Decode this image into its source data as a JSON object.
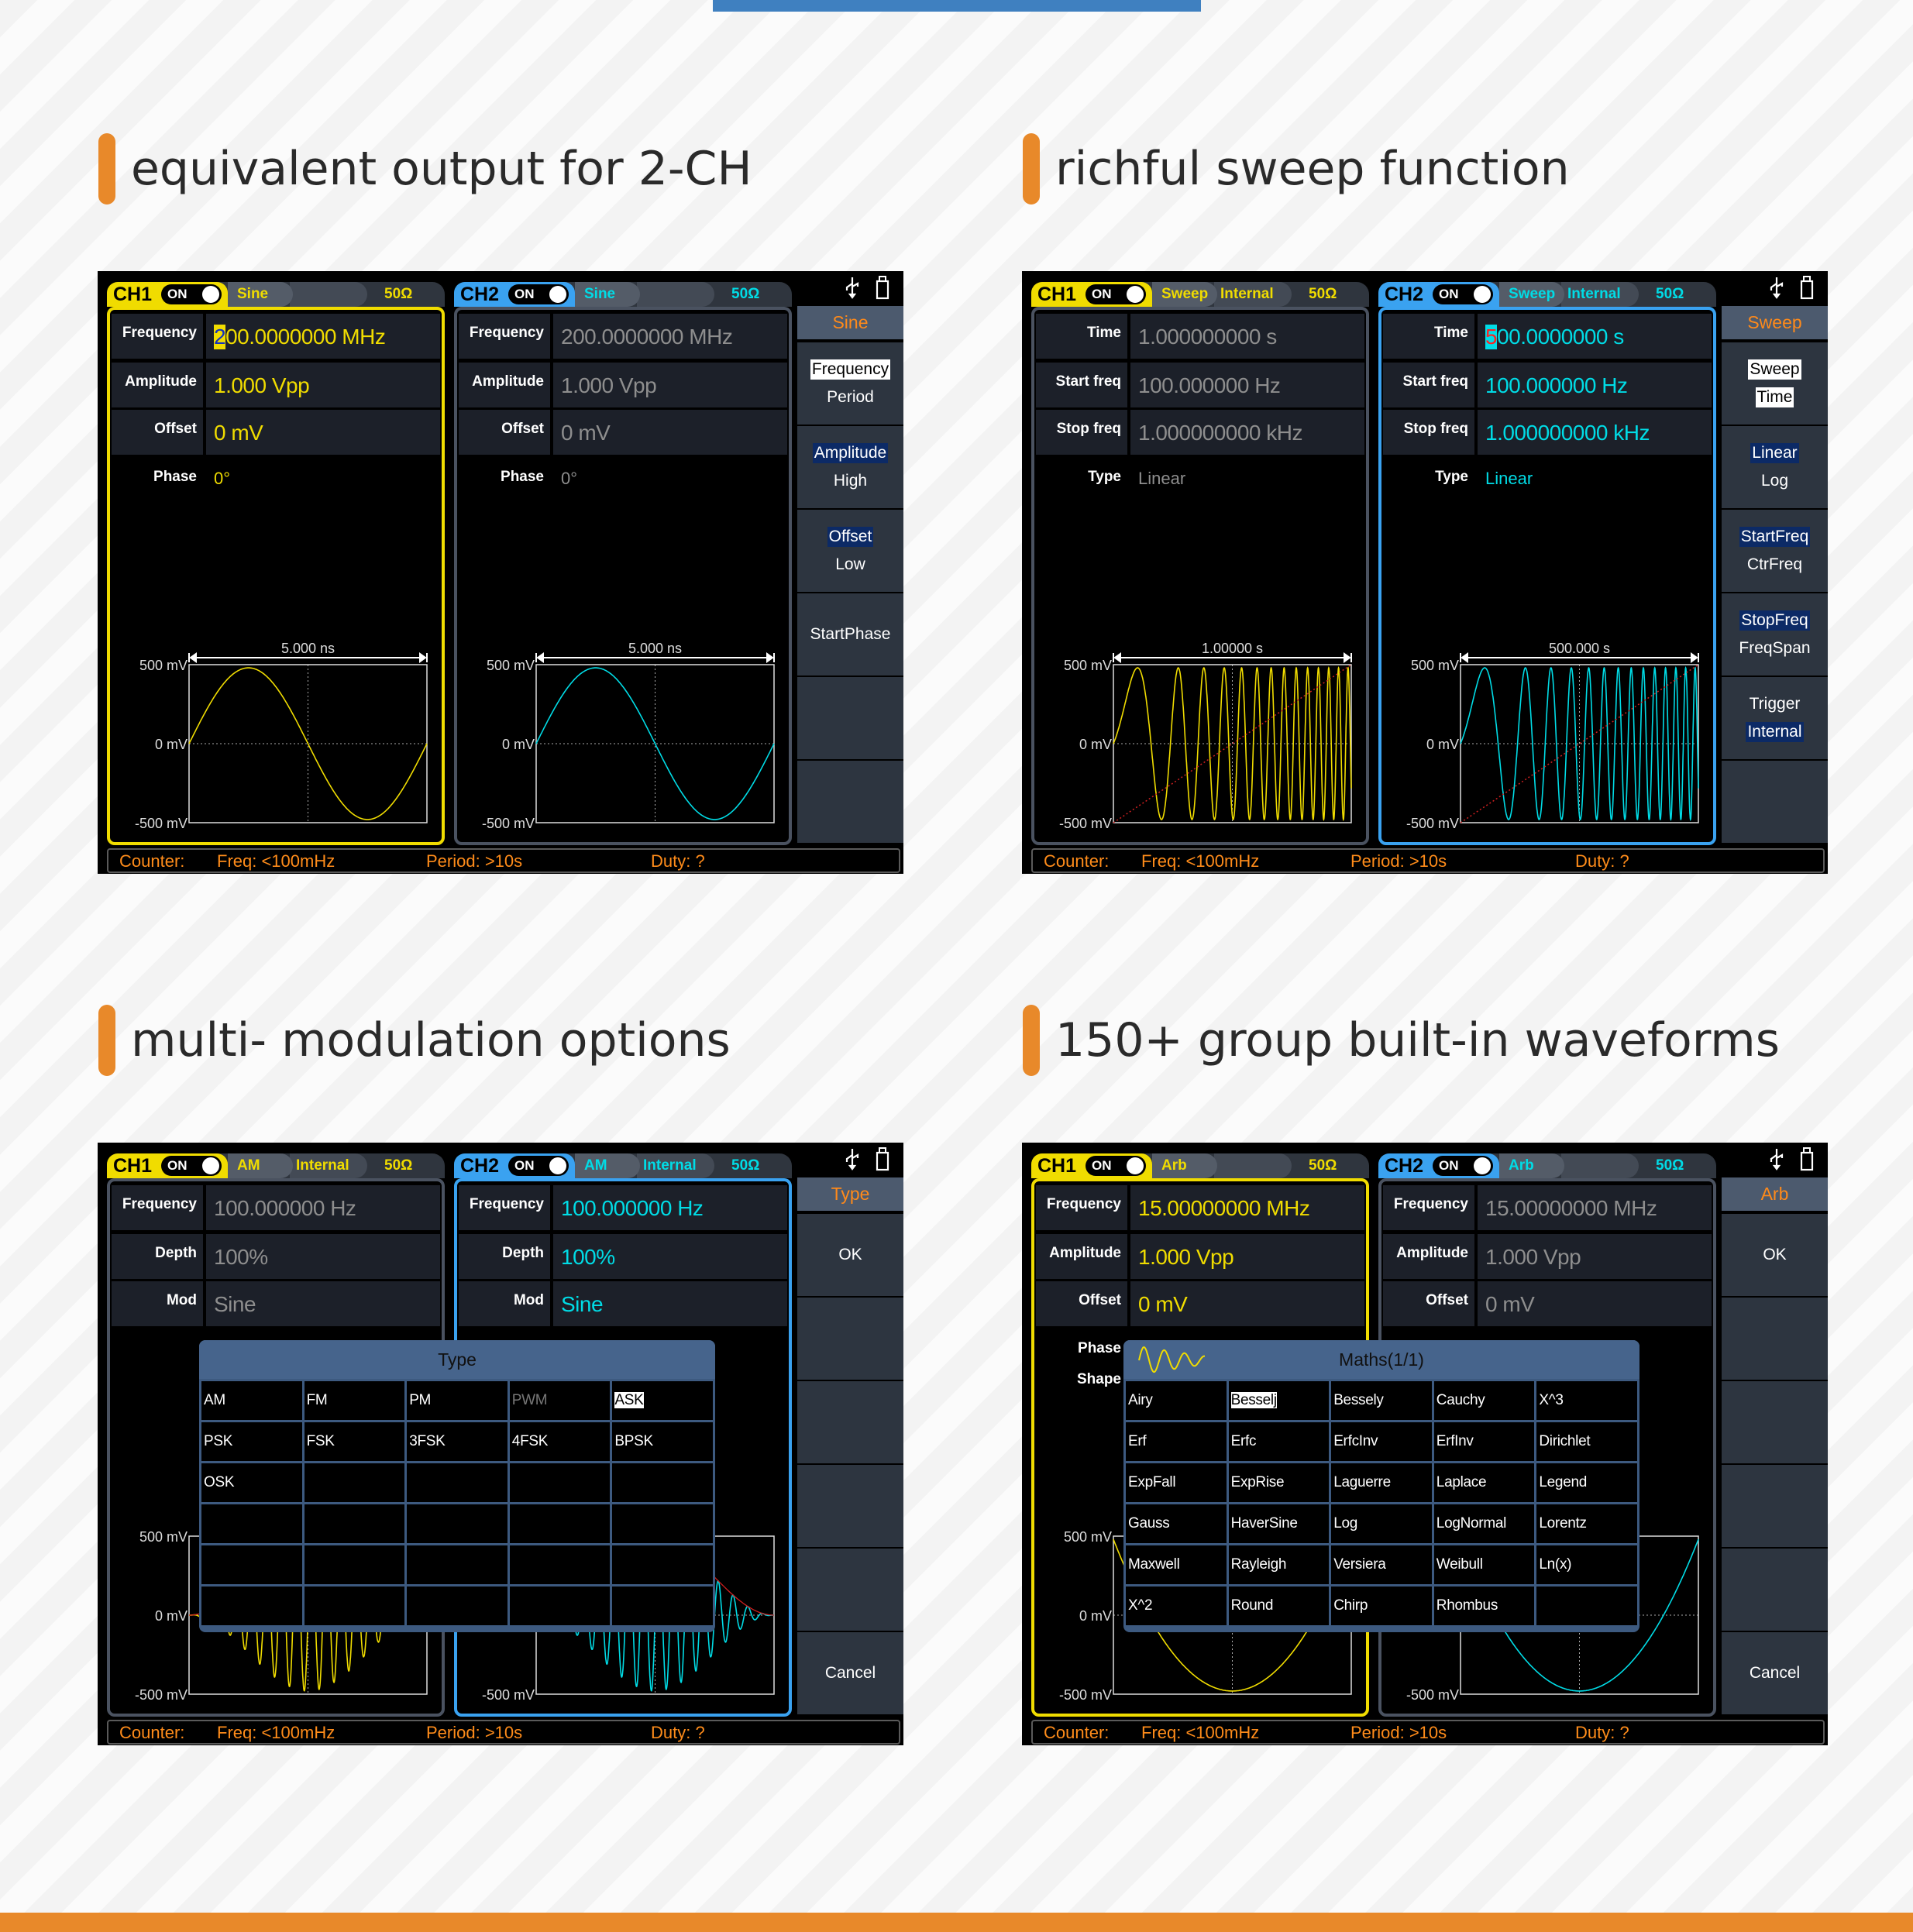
{
  "colors": {
    "ch1": "#f0dc00",
    "ch2": "#00dce6",
    "ch2_tab": "#3aa2f0",
    "inactive_border": "#4a5260",
    "inactive_value": "#8e8e8e",
    "menu_title": "#ff8a1a",
    "counter_text": "#ff8c1a",
    "accent_orange": "#e8892a",
    "accent_blue": "#3f80c0",
    "sweep_ramp": "#d02020"
  },
  "sections": [
    {
      "heading": "equivalent output for 2-CH",
      "screen": {
        "channels": [
          {
            "name": "CH1",
            "state": "ON",
            "mode": "Sine",
            "source": "",
            "impedance": "50Ω",
            "active": true,
            "params": [
              {
                "label": "Frequency",
                "cursor": "2",
                "value": "00.0000000 MHz"
              },
              {
                "label": "Amplitude",
                "value": "1.000 Vpp"
              },
              {
                "label": "Offset",
                "value": "0 mV"
              }
            ],
            "extras": [
              {
                "label": "Phase",
                "value": "0°"
              }
            ],
            "graph": {
              "span": "5.000 ns",
              "y_top": "500 mV",
              "y_mid": "0 mV",
              "y_bot": "-500 mV",
              "wave": "sine"
            }
          },
          {
            "name": "CH2",
            "state": "ON",
            "mode": "Sine",
            "source": "",
            "impedance": "50Ω",
            "active": false,
            "params": [
              {
                "label": "Frequency",
                "value": "200.0000000 MHz"
              },
              {
                "label": "Amplitude",
                "value": "1.000 Vpp"
              },
              {
                "label": "Offset",
                "value": "0 mV"
              }
            ],
            "extras": [
              {
                "label": "Phase",
                "value": "0°"
              }
            ],
            "graph": {
              "span": "5.000 ns",
              "y_top": "500 mV",
              "y_mid": "0 mV",
              "y_bot": "-500 mV",
              "wave": "sine"
            }
          }
        ],
        "menu": {
          "title": "Sine",
          "slots": [
            [
              {
                "label": "Frequency",
                "style": "boxed"
              },
              {
                "label": "Period"
              }
            ],
            [
              {
                "label": "Amplitude",
                "style": "hl"
              },
              {
                "label": "High"
              }
            ],
            [
              {
                "label": "Offset",
                "style": "hl"
              },
              {
                "label": "Low"
              }
            ],
            [
              {
                "label": "StartPhase"
              }
            ],
            [],
            []
          ]
        },
        "counter": {
          "label": "Counter:",
          "freq": "Freq: <100mHz",
          "period": "Period: >10s",
          "duty": "Duty: ?"
        }
      }
    },
    {
      "heading": "richful sweep function",
      "screen": {
        "channels": [
          {
            "name": "CH1",
            "state": "ON",
            "mode": "Sweep",
            "source": "Internal",
            "impedance": "50Ω",
            "active": false,
            "params": [
              {
                "label": "Time",
                "value": "1.000000000 s"
              },
              {
                "label": "Start freq",
                "value": "100.000000 Hz"
              },
              {
                "label": "Stop freq",
                "value": "1.000000000 kHz"
              }
            ],
            "extras": [
              {
                "label": "Type",
                "value": "Linear"
              }
            ],
            "graph": {
              "span": "1.00000 s",
              "y_top": "500 mV",
              "y_mid": "0 mV",
              "y_bot": "-500 mV",
              "wave": "sweep"
            }
          },
          {
            "name": "CH2",
            "state": "ON",
            "mode": "Sweep",
            "source": "Internal",
            "impedance": "50Ω",
            "active": true,
            "params": [
              {
                "label": "Time",
                "cursor": "5",
                "value": "00.0000000 s"
              },
              {
                "label": "Start freq",
                "value": "100.000000 Hz"
              },
              {
                "label": "Stop freq",
                "value": "1.000000000 kHz"
              }
            ],
            "extras": [
              {
                "label": "Type",
                "value": "Linear"
              }
            ],
            "graph": {
              "span": "500.000 s",
              "y_top": "500 mV",
              "y_mid": "0 mV",
              "y_bot": "-500 mV",
              "wave": "sweep"
            }
          }
        ],
        "menu": {
          "title": "Sweep",
          "slots": [
            [
              {
                "label": "Sweep",
                "style": "boxed"
              },
              {
                "label": "Time",
                "style": "boxed"
              }
            ],
            [
              {
                "label": "Linear",
                "style": "hl"
              },
              {
                "label": "Log"
              }
            ],
            [
              {
                "label": "StartFreq",
                "style": "hl"
              },
              {
                "label": "CtrFreq"
              }
            ],
            [
              {
                "label": "StopFreq",
                "style": "hl"
              },
              {
                "label": "FreqSpan"
              }
            ],
            [
              {
                "label": "Trigger"
              },
              {
                "label": "Internal",
                "style": "hl"
              }
            ],
            []
          ]
        },
        "counter": {
          "label": "Counter:",
          "freq": "Freq: <100mHz",
          "period": "Period: >10s",
          "duty": "Duty: ?"
        }
      }
    },
    {
      "heading": "multi- modulation options",
      "screen": {
        "channels": [
          {
            "name": "CH1",
            "state": "ON",
            "mode": "AM",
            "source": "Internal",
            "impedance": "50Ω",
            "active": false,
            "params": [
              {
                "label": "Frequency",
                "value": "100.000000 Hz"
              },
              {
                "label": "Depth",
                "value": "100%"
              },
              {
                "label": "Mod",
                "value": "Sine"
              }
            ],
            "extras": [],
            "graph": {
              "y_top": "500 mV",
              "y_mid": "0 mV",
              "y_bot": "-500 mV",
              "wave": "am"
            }
          },
          {
            "name": "CH2",
            "state": "ON",
            "mode": "AM",
            "source": "Internal",
            "impedance": "50Ω",
            "active": true,
            "params": [
              {
                "label": "Frequency",
                "value": "100.000000 Hz"
              },
              {
                "label": "Depth",
                "value": "100%"
              },
              {
                "label": "Mod",
                "value": "Sine"
              }
            ],
            "extras": [],
            "graph": {
              "y_bot": "-500 mV",
              "wave": "am"
            }
          }
        ],
        "menu": {
          "title": "Type",
          "slots": [
            [
              {
                "label": "OK"
              }
            ],
            [],
            [],
            [],
            [],
            [
              {
                "label": "Cancel"
              }
            ]
          ]
        },
        "counter": {
          "label": "Counter:",
          "freq": "Freq: <100mHz",
          "period": "Period: >10s",
          "duty": "Duty: ?"
        },
        "popup": {
          "title": "Type",
          "icon": "",
          "selected": "ASK",
          "disabled": [
            "PWM"
          ],
          "cells": [
            [
              "AM",
              "FM",
              "PM",
              "PWM",
              "ASK"
            ],
            [
              "PSK",
              "FSK",
              "3FSK",
              "4FSK",
              "BPSK"
            ],
            [
              "OSK",
              "",
              "",
              "",
              ""
            ],
            [
              "",
              "",
              "",
              "",
              ""
            ],
            [
              "",
              "",
              "",
              "",
              ""
            ],
            [
              "",
              "",
              "",
              "",
              ""
            ]
          ]
        }
      }
    },
    {
      "heading": "150+ group built-in waveforms",
      "screen": {
        "channels": [
          {
            "name": "CH1",
            "state": "ON",
            "mode": "Arb",
            "source": "",
            "impedance": "50Ω",
            "active": true,
            "params": [
              {
                "label": "Frequency",
                "value": "15.00000000 MHz"
              },
              {
                "label": "Amplitude",
                "value": "1.000 Vpp"
              },
              {
                "label": "Offset",
                "value": "0 mV"
              }
            ],
            "extras": [
              {
                "label": "Phase",
                "value": ""
              },
              {
                "label": "Shape",
                "value": ""
              }
            ],
            "graph": {
              "y_top": "500 mV",
              "y_mid": "0 mV",
              "y_bot": "-500 mV",
              "wave": "arb"
            }
          },
          {
            "name": "CH2",
            "state": "ON",
            "mode": "Arb",
            "source": "",
            "impedance": "50Ω",
            "active": false,
            "params": [
              {
                "label": "Frequency",
                "value": "15.00000000 MHz"
              },
              {
                "label": "Amplitude",
                "value": "1.000 Vpp"
              },
              {
                "label": "Offset",
                "value": "0 mV"
              }
            ],
            "extras": [],
            "graph": {
              "y_top": "500 mV",
              "y_mid": "0 mV",
              "y_bot": "-500 mV",
              "wave": "arb"
            }
          }
        ],
        "menu": {
          "title": "Arb",
          "slots": [
            [
              {
                "label": "OK"
              }
            ],
            [],
            [],
            [],
            [],
            [
              {
                "label": "Cancel"
              }
            ]
          ]
        },
        "counter": {
          "label": "Counter:",
          "freq": "Freq: <100mHz",
          "period": "Period: >10s",
          "duty": "Duty: ?"
        },
        "popup": {
          "title": "Maths(1/1)",
          "icon": "wave-preview",
          "selected": "Besselj",
          "disabled": [],
          "cells": [
            [
              "Airy",
              "Besselj",
              "Bessely",
              "Cauchy",
              "X^3"
            ],
            [
              "Erf",
              "Erfc",
              "ErfcInv",
              "ErfInv",
              "Dirichlet"
            ],
            [
              "ExpFall",
              "ExpRise",
              "Laguerre",
              "Laplace",
              "Legend"
            ],
            [
              "Gauss",
              "HaverSine",
              "Log",
              "LogNormal",
              "Lorentz"
            ],
            [
              "Maxwell",
              "Rayleigh",
              "Versiera",
              "Weibull",
              "Ln(x)"
            ],
            [
              "X^2",
              "Round",
              "Chirp",
              "Rhombus",
              ""
            ]
          ]
        }
      }
    }
  ]
}
